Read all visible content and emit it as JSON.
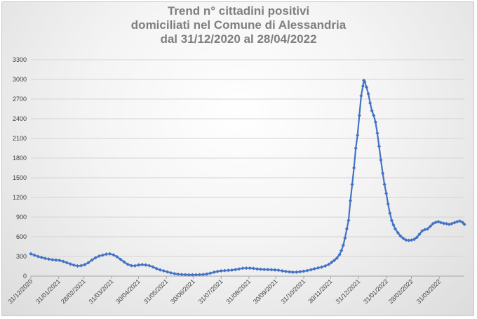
{
  "chart_data": {
    "type": "line",
    "title_lines": [
      "Trend n° cittadini positivi",
      "domiciliati nel Comune di Alessandria",
      "dal 31/12/2020 al 28/04/2022"
    ],
    "xlabel": "",
    "ylabel": "",
    "ylim": [
      0,
      3300
    ],
    "y_ticks": [
      "0",
      "300",
      "600",
      "900",
      "1200",
      "1500",
      "1800",
      "2100",
      "2400",
      "2700",
      "3000",
      "3300"
    ],
    "x_range": [
      "2020-12-31",
      "2022-04-28"
    ],
    "x_ticks": [
      {
        "date": "2020-12-31",
        "label": "31/12/2020"
      },
      {
        "date": "2021-01-31",
        "label": "31/01/2021"
      },
      {
        "date": "2021-02-28",
        "label": "28/02/2021"
      },
      {
        "date": "2021-03-31",
        "label": "31/03/2021"
      },
      {
        "date": "2021-04-30",
        "label": "30/04/2021"
      },
      {
        "date": "2021-05-31",
        "label": "31/05/2021"
      },
      {
        "date": "2021-06-30",
        "label": "30/06/2021"
      },
      {
        "date": "2021-07-31",
        "label": "31/07/2021"
      },
      {
        "date": "2021-08-31",
        "label": "31/08/2021"
      },
      {
        "date": "2021-09-30",
        "label": "30/09/2021"
      },
      {
        "date": "2021-10-31",
        "label": "31/10/2021"
      },
      {
        "date": "2021-11-30",
        "label": "30/11/2021"
      },
      {
        "date": "2021-12-31",
        "label": "31/12/2021"
      },
      {
        "date": "2022-01-31",
        "label": "31/01/2022"
      },
      {
        "date": "2022-02-28",
        "label": "28/02/2022"
      },
      {
        "date": "2022-03-31",
        "label": "31/03/2022"
      }
    ],
    "grid": true,
    "legend": "none",
    "series": [
      {
        "color": "#4472c4",
        "marker": "diamond",
        "points": [
          [
            "2020-12-31",
            340
          ],
          [
            "2021-01-04",
            320
          ],
          [
            "2021-01-08",
            300
          ],
          [
            "2021-01-12",
            285
          ],
          [
            "2021-01-16",
            270
          ],
          [
            "2021-01-20",
            260
          ],
          [
            "2021-01-24",
            250
          ],
          [
            "2021-01-28",
            245
          ],
          [
            "2021-02-01",
            240
          ],
          [
            "2021-02-05",
            225
          ],
          [
            "2021-02-09",
            205
          ],
          [
            "2021-02-13",
            185
          ],
          [
            "2021-02-17",
            168
          ],
          [
            "2021-02-21",
            155
          ],
          [
            "2021-02-25",
            160
          ],
          [
            "2021-03-01",
            175
          ],
          [
            "2021-03-05",
            205
          ],
          [
            "2021-03-09",
            245
          ],
          [
            "2021-03-13",
            280
          ],
          [
            "2021-03-17",
            305
          ],
          [
            "2021-03-21",
            320
          ],
          [
            "2021-03-25",
            335
          ],
          [
            "2021-03-29",
            340
          ],
          [
            "2021-04-02",
            325
          ],
          [
            "2021-04-06",
            295
          ],
          [
            "2021-04-10",
            255
          ],
          [
            "2021-04-14",
            215
          ],
          [
            "2021-04-18",
            180
          ],
          [
            "2021-04-22",
            160
          ],
          [
            "2021-04-26",
            158
          ],
          [
            "2021-04-30",
            170
          ],
          [
            "2021-05-04",
            175
          ],
          [
            "2021-05-08",
            170
          ],
          [
            "2021-05-12",
            160
          ],
          [
            "2021-05-16",
            140
          ],
          [
            "2021-05-20",
            115
          ],
          [
            "2021-05-24",
            95
          ],
          [
            "2021-05-28",
            80
          ],
          [
            "2021-06-01",
            65
          ],
          [
            "2021-06-05",
            50
          ],
          [
            "2021-06-09",
            38
          ],
          [
            "2021-06-13",
            30
          ],
          [
            "2021-06-17",
            25
          ],
          [
            "2021-06-21",
            22
          ],
          [
            "2021-06-25",
            20
          ],
          [
            "2021-06-29",
            20
          ],
          [
            "2021-07-03",
            21
          ],
          [
            "2021-07-07",
            22
          ],
          [
            "2021-07-11",
            25
          ],
          [
            "2021-07-15",
            32
          ],
          [
            "2021-07-19",
            45
          ],
          [
            "2021-07-23",
            60
          ],
          [
            "2021-07-27",
            72
          ],
          [
            "2021-07-31",
            80
          ],
          [
            "2021-08-04",
            85
          ],
          [
            "2021-08-08",
            88
          ],
          [
            "2021-08-12",
            92
          ],
          [
            "2021-08-16",
            100
          ],
          [
            "2021-08-20",
            110
          ],
          [
            "2021-08-24",
            120
          ],
          [
            "2021-08-28",
            122
          ],
          [
            "2021-09-01",
            122
          ],
          [
            "2021-09-05",
            118
          ],
          [
            "2021-09-09",
            110
          ],
          [
            "2021-09-13",
            105
          ],
          [
            "2021-09-17",
            102
          ],
          [
            "2021-09-21",
            100
          ],
          [
            "2021-09-25",
            98
          ],
          [
            "2021-09-29",
            95
          ],
          [
            "2021-10-03",
            90
          ],
          [
            "2021-10-07",
            80
          ],
          [
            "2021-10-11",
            72
          ],
          [
            "2021-10-15",
            65
          ],
          [
            "2021-10-19",
            60
          ],
          [
            "2021-10-23",
            62
          ],
          [
            "2021-10-27",
            68
          ],
          [
            "2021-10-31",
            75
          ],
          [
            "2021-11-04",
            85
          ],
          [
            "2021-11-08",
            98
          ],
          [
            "2021-11-12",
            112
          ],
          [
            "2021-11-16",
            125
          ],
          [
            "2021-11-20",
            138
          ],
          [
            "2021-11-24",
            155
          ],
          [
            "2021-11-28",
            180
          ],
          [
            "2021-12-01",
            210
          ],
          [
            "2021-12-04",
            240
          ],
          [
            "2021-12-07",
            275
          ],
          [
            "2021-12-10",
            330
          ],
          [
            "2021-12-12",
            390
          ],
          [
            "2021-12-14",
            470
          ],
          [
            "2021-12-16",
            580
          ],
          [
            "2021-12-18",
            720
          ],
          [
            "2021-12-20",
            850
          ],
          [
            "2021-12-22",
            1150
          ],
          [
            "2021-12-24",
            1400
          ],
          [
            "2021-12-26",
            1650
          ],
          [
            "2021-12-28",
            1950
          ],
          [
            "2021-12-30",
            2150
          ],
          [
            "2022-01-01",
            2450
          ],
          [
            "2022-01-03",
            2750
          ],
          [
            "2022-01-05",
            2900
          ],
          [
            "2022-01-06",
            2985
          ],
          [
            "2022-01-07",
            2960
          ],
          [
            "2022-01-09",
            2880
          ],
          [
            "2022-01-11",
            2780
          ],
          [
            "2022-01-13",
            2640
          ],
          [
            "2022-01-15",
            2520
          ],
          [
            "2022-01-17",
            2450
          ],
          [
            "2022-01-19",
            2350
          ],
          [
            "2022-01-21",
            2180
          ],
          [
            "2022-01-23",
            1980
          ],
          [
            "2022-01-25",
            1770
          ],
          [
            "2022-01-27",
            1570
          ],
          [
            "2022-01-29",
            1400
          ],
          [
            "2022-01-31",
            1260
          ],
          [
            "2022-02-02",
            1100
          ],
          [
            "2022-02-04",
            960
          ],
          [
            "2022-02-06",
            850
          ],
          [
            "2022-02-08",
            780
          ],
          [
            "2022-02-10",
            720
          ],
          [
            "2022-02-13",
            660
          ],
          [
            "2022-02-16",
            610
          ],
          [
            "2022-02-19",
            575
          ],
          [
            "2022-02-22",
            550
          ],
          [
            "2022-02-25",
            545
          ],
          [
            "2022-02-28",
            550
          ],
          [
            "2022-03-03",
            560
          ],
          [
            "2022-03-06",
            590
          ],
          [
            "2022-03-09",
            640
          ],
          [
            "2022-03-12",
            690
          ],
          [
            "2022-03-15",
            710
          ],
          [
            "2022-03-18",
            720
          ],
          [
            "2022-03-21",
            760
          ],
          [
            "2022-03-24",
            800
          ],
          [
            "2022-03-27",
            820
          ],
          [
            "2022-03-30",
            830
          ],
          [
            "2022-04-02",
            815
          ],
          [
            "2022-04-05",
            805
          ],
          [
            "2022-04-08",
            800
          ],
          [
            "2022-04-11",
            790
          ],
          [
            "2022-04-14",
            800
          ],
          [
            "2022-04-17",
            815
          ],
          [
            "2022-04-20",
            830
          ],
          [
            "2022-04-23",
            840
          ],
          [
            "2022-04-26",
            820
          ],
          [
            "2022-04-28",
            790
          ]
        ]
      }
    ]
  }
}
